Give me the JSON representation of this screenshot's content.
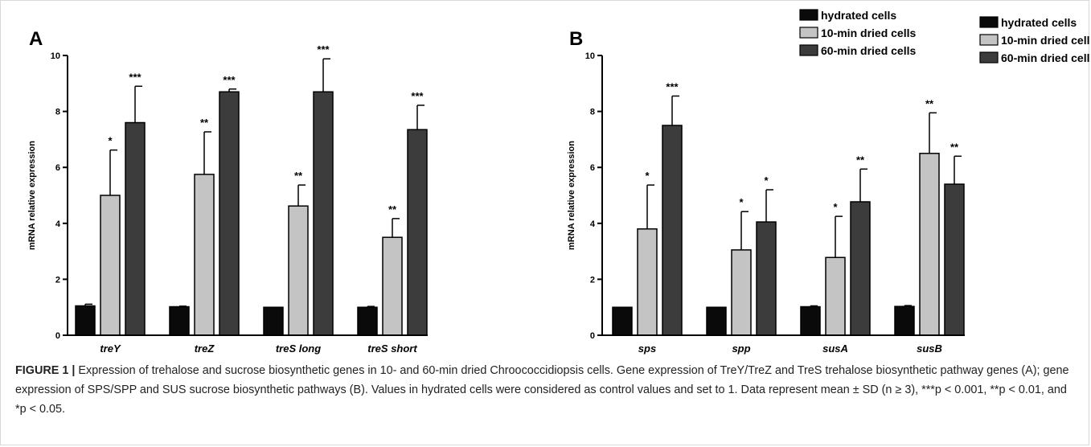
{
  "colors": {
    "hydrated": "#0a0a0a",
    "dried10": "#c4c4c4",
    "dried60": "#3c3c3c",
    "axis": "#000000"
  },
  "chart_data": [
    {
      "panel_label": "A",
      "type": "bar",
      "ylabel": "mRNA relative expression",
      "ylim": [
        0,
        10
      ],
      "yticks": [
        "0",
        "2",
        "4",
        "6",
        "8",
        "10"
      ],
      "categories": [
        "treY",
        "treZ",
        "treS long",
        "treS short"
      ],
      "legend": [
        "hydrated cells",
        "10-min dried cells",
        "60-min dried cells"
      ],
      "legend_position": "top-right",
      "series": [
        {
          "name": "hydrated cells",
          "values": [
            1.05,
            1.02,
            1.0,
            1.0
          ],
          "errors": [
            0.06,
            0.02,
            0.0,
            0.03
          ],
          "stars": [
            "",
            "",
            "",
            ""
          ]
        },
        {
          "name": "10-min dried cells",
          "values": [
            5.0,
            5.75,
            4.62,
            3.5
          ],
          "errors": [
            1.62,
            1.52,
            0.75,
            0.67
          ],
          "stars": [
            "*",
            "**",
            "**",
            "**"
          ]
        },
        {
          "name": "60-min dried cells",
          "values": [
            7.6,
            8.7,
            8.7,
            7.35
          ],
          "errors": [
            1.3,
            0.1,
            1.18,
            0.87
          ],
          "stars": [
            "***",
            "***",
            "***",
            "***"
          ]
        }
      ]
    },
    {
      "panel_label": "B",
      "type": "bar",
      "ylabel": "mRNA relative expression",
      "ylim": [
        0,
        10
      ],
      "yticks": [
        "0",
        "2",
        "4",
        "6",
        "8",
        "10"
      ],
      "categories": [
        "sps",
        "spp",
        "susA",
        "susB"
      ],
      "legend": [
        "hydrated cells",
        "10-min dried cells",
        "60-min dried cells"
      ],
      "legend_position": "top-right",
      "series": [
        {
          "name": "hydrated cells",
          "values": [
            1.0,
            1.0,
            1.02,
            1.03
          ],
          "errors": [
            0.0,
            0.0,
            0.03,
            0.03
          ],
          "stars": [
            "",
            "",
            "",
            ""
          ]
        },
        {
          "name": "10-min dried cells",
          "values": [
            3.8,
            3.05,
            2.78,
            6.5
          ],
          "errors": [
            1.57,
            1.37,
            1.47,
            1.45
          ],
          "stars": [
            "*",
            "*",
            "*",
            "**"
          ]
        },
        {
          "name": "60-min dried cells",
          "values": [
            7.5,
            4.05,
            4.77,
            5.4
          ],
          "errors": [
            1.05,
            1.15,
            1.17,
            1.0
          ],
          "stars": [
            "***",
            "*",
            "**",
            "**"
          ]
        }
      ]
    }
  ],
  "caption": {
    "label": "FIGURE 1 |",
    "text": " Expression of trehalose and sucrose biosynthetic genes in 10- and 60-min dried Chroococcidiopsis cells. Gene expression of TreY/TreZ and TreS trehalose biosynthetic pathway genes (A); gene expression of SPS/SPP and SUS sucrose biosynthetic pathways (B). Values in hydrated cells were considered as control values and set to 1. Data represent mean ± SD (n ≥ 3), ***p < 0.001, **p < 0.01, and *p < 0.05."
  }
}
